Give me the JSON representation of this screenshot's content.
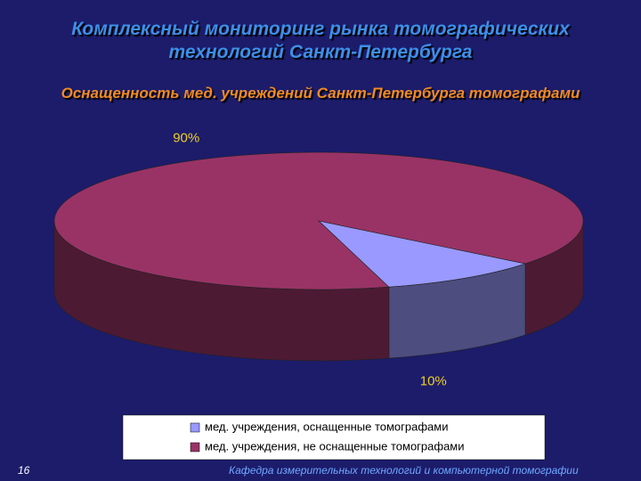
{
  "slide": {
    "page_number": "16",
    "footer": "Кафедра измерительных технологий и компьютерной томографии"
  },
  "chart_data": {
    "type": "pie",
    "title": "Комплексный мониторинг рынка томографических технологий Санкт-Петербурга",
    "subtitle": "Оснащенность мед. учреждений Санкт-Петербурга томографами",
    "categories": [
      "мед. учреждения, оснащенные томографами",
      "мед. учреждения, не оснащенные томографами"
    ],
    "values": [
      10,
      90
    ],
    "value_labels": [
      "10%",
      "90%"
    ],
    "colors": [
      "#9999ff",
      "#993366"
    ],
    "legend": "bottom"
  }
}
